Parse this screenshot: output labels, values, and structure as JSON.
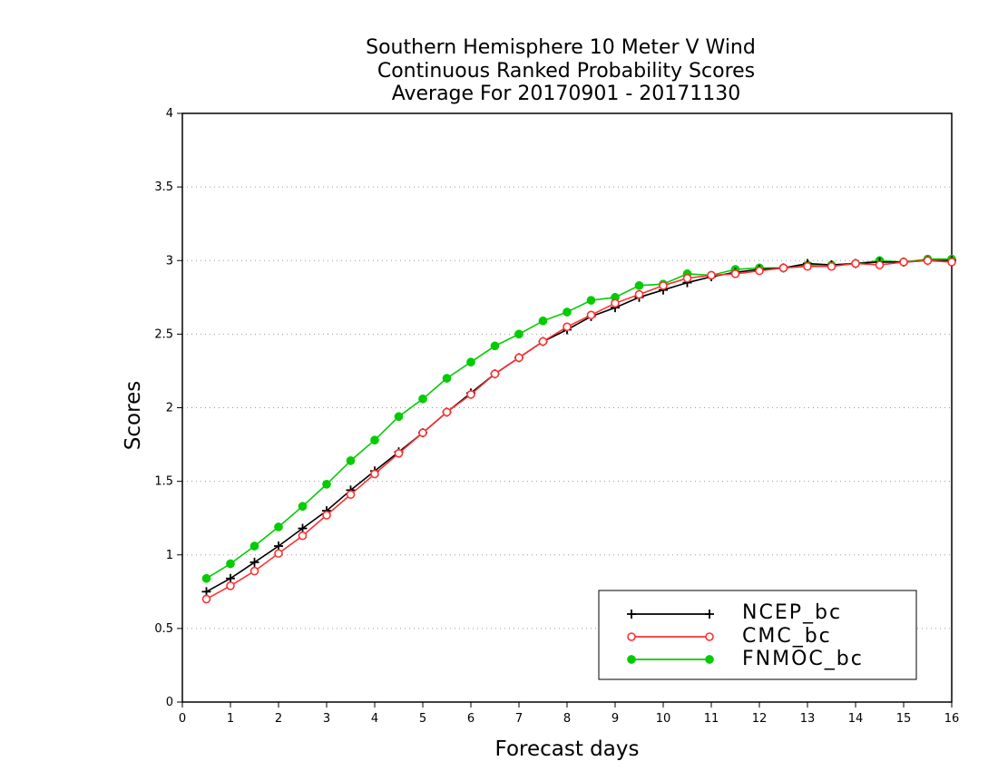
{
  "chart_data": {
    "type": "line",
    "title_lines": [
      "Southern Hemisphere 10 Meter V Wind",
      "Continuous Ranked Probability Scores",
      "Average For 20170901 - 20171130"
    ],
    "xlabel": "Forecast days",
    "ylabel": "Scores",
    "xlim": [
      0,
      16
    ],
    "ylim": [
      0,
      4
    ],
    "xticks": [
      0,
      1,
      2,
      3,
      4,
      5,
      6,
      7,
      8,
      9,
      10,
      11,
      12,
      13,
      14,
      15,
      16
    ],
    "xtick_labels": [
      "0",
      "1",
      "2",
      "3",
      "4",
      "5",
      "6",
      "7",
      "8",
      "9",
      "10",
      "11",
      "12",
      "13",
      "14",
      "15",
      "16"
    ],
    "yticks": [
      0,
      0.5,
      1,
      1.5,
      2,
      2.5,
      3,
      3.5,
      4
    ],
    "ytick_labels": [
      "0",
      "0.5",
      "1",
      "1.5",
      "2",
      "2.5",
      "3",
      "3.5",
      "4"
    ],
    "grid": "horizontal dotted",
    "legend_position": "bottom-right",
    "x": [
      0.5,
      1,
      1.5,
      2,
      2.5,
      3,
      3.5,
      4,
      4.5,
      5,
      5.5,
      6,
      6.5,
      7,
      7.5,
      8,
      8.5,
      9,
      9.5,
      10,
      10.5,
      11,
      11.5,
      12,
      12.5,
      13,
      13.5,
      14,
      14.5,
      15,
      15.5,
      16
    ],
    "series": [
      {
        "name": "NCEP_bc",
        "color": "#000000",
        "marker": "plus",
        "values": [
          0.75,
          0.84,
          0.95,
          1.06,
          1.18,
          1.3,
          1.44,
          1.57,
          1.7,
          1.83,
          1.97,
          2.1,
          2.23,
          2.34,
          2.45,
          2.53,
          2.62,
          2.68,
          2.75,
          2.8,
          2.85,
          2.89,
          2.92,
          2.94,
          2.95,
          2.98,
          2.97,
          2.98,
          2.99,
          2.99,
          3.0,
          3.0
        ]
      },
      {
        "name": "CMC_bc",
        "color": "#ff3030",
        "marker": "open-circle",
        "values": [
          0.7,
          0.79,
          0.89,
          1.01,
          1.13,
          1.27,
          1.41,
          1.55,
          1.69,
          1.83,
          1.97,
          2.09,
          2.23,
          2.34,
          2.45,
          2.55,
          2.63,
          2.71,
          2.77,
          2.83,
          2.88,
          2.9,
          2.91,
          2.93,
          2.95,
          2.96,
          2.96,
          2.98,
          2.97,
          2.99,
          3.0,
          2.99
        ]
      },
      {
        "name": "FNMOC_bc",
        "color": "#00cc00",
        "marker": "filled-circle",
        "values": [
          0.84,
          0.94,
          1.06,
          1.19,
          1.33,
          1.48,
          1.64,
          1.78,
          1.94,
          2.06,
          2.2,
          2.31,
          2.42,
          2.5,
          2.59,
          2.65,
          2.73,
          2.75,
          2.83,
          2.84,
          2.91,
          2.9,
          2.94,
          2.95,
          2.95,
          2.97,
          2.97,
          2.98,
          3.0,
          2.99,
          3.01,
          3.01
        ]
      }
    ]
  }
}
